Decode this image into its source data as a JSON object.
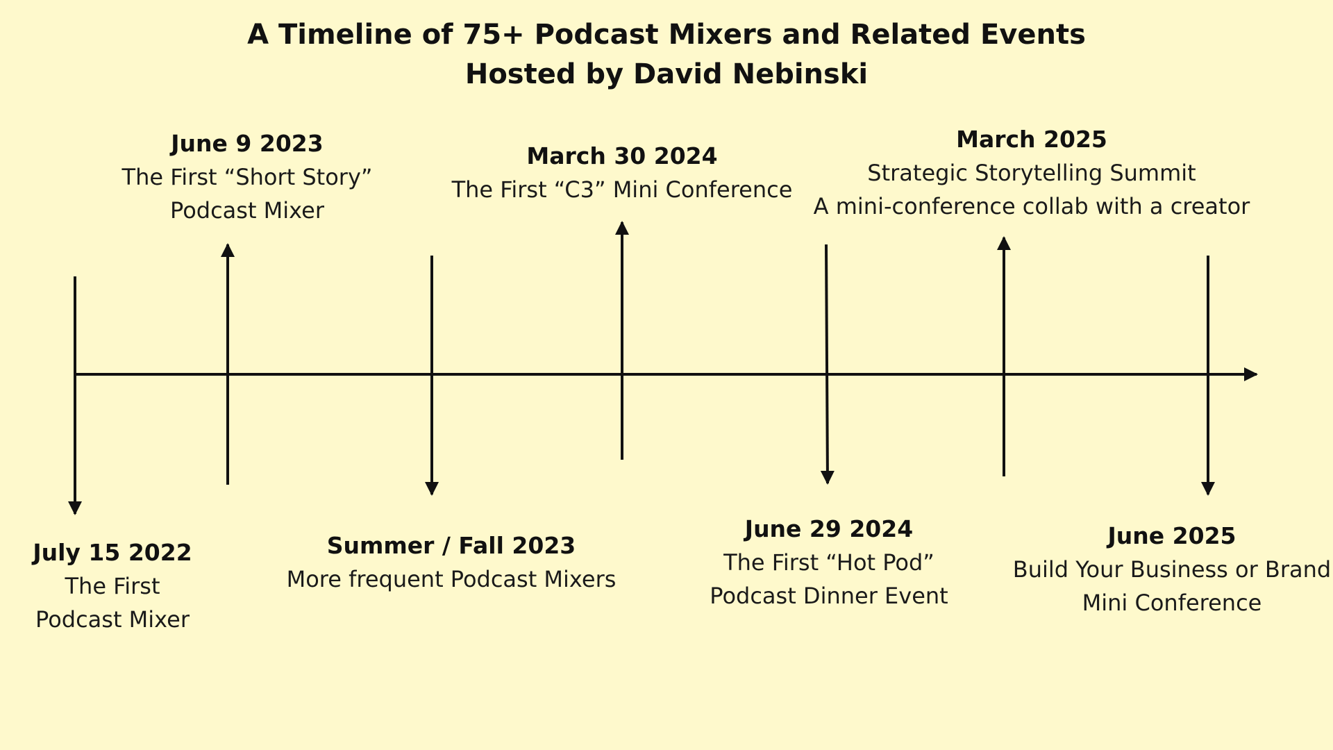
{
  "title": {
    "line1": "A Timeline of 75+ Podcast Mixers and Related Events",
    "line2": "Hosted by David Nebinski"
  },
  "colors": {
    "background": "#fef9cc",
    "line": "#111111",
    "text": "#111111"
  },
  "events": [
    {
      "date": "July 15 2022",
      "lines": [
        "The First",
        "Podcast Mixer"
      ],
      "position": "below"
    },
    {
      "date": "June 9 2023",
      "lines": [
        "The First “Short Story”",
        "Podcast Mixer"
      ],
      "position": "above"
    },
    {
      "date": "Summer / Fall 2023",
      "lines": [
        "More frequent Podcast Mixers"
      ],
      "position": "below"
    },
    {
      "date": "March 30 2024",
      "lines": [
        "The First “C3” Mini Conference"
      ],
      "position": "above"
    },
    {
      "date": "June 29 2024",
      "lines": [
        "The First “Hot Pod”",
        "Podcast Dinner Event"
      ],
      "position": "below"
    },
    {
      "date": "March 2025",
      "lines": [
        "Strategic Storytelling Summit",
        "A mini-conference collab with a creator"
      ],
      "position": "above"
    },
    {
      "date": "June 2025",
      "lines": [
        "Build Your Business or Brand",
        "Mini Conference"
      ],
      "position": "below"
    }
  ]
}
